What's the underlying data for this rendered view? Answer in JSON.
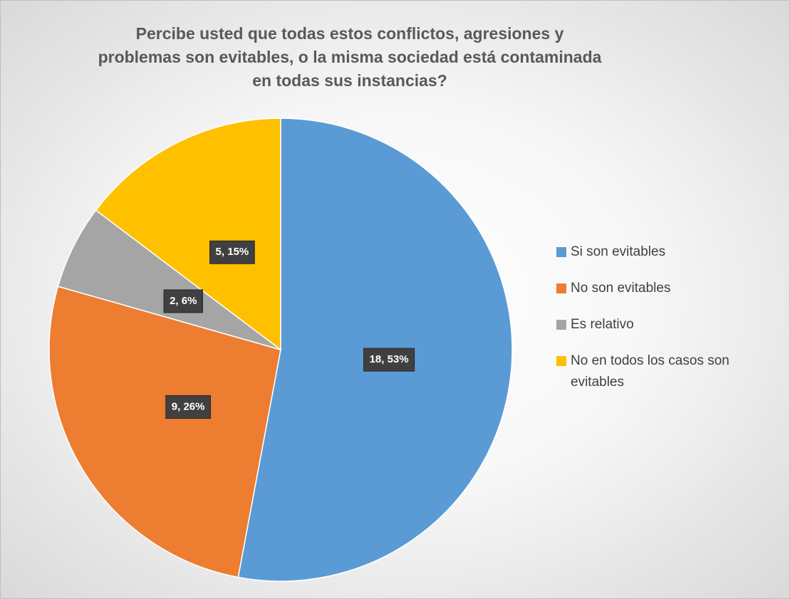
{
  "chart_data": {
    "type": "pie",
    "title": "Percibe usted que todas estos conflictos, agresiones y problemas son evitables, o la misma sociedad está contaminada en todas sus instancias?",
    "categories": [
      "Si son evitables",
      "No son evitables",
      "Es relativo",
      "No en todos los casos son evitables"
    ],
    "values": [
      18,
      9,
      2,
      5
    ],
    "value_labels": [
      "18, 53%",
      "9, 26%",
      "2, 6%",
      "5, 15%"
    ],
    "colors": [
      "#5b9bd5",
      "#ed7d31",
      "#a5a5a5",
      "#ffc000"
    ],
    "legend": "right"
  }
}
